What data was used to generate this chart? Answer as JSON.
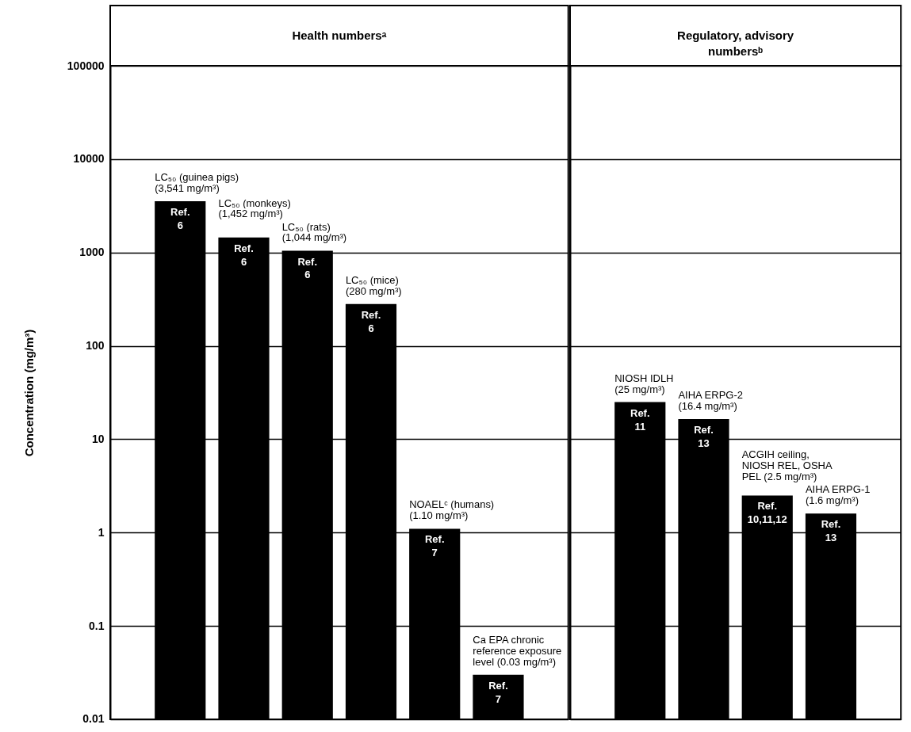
{
  "chart_data": [
    {
      "type": "bar",
      "title": "Health numbersᵃ",
      "ylabel": "Concentration (mg/m³)",
      "categories": [
        null,
        null,
        null,
        null,
        null,
        null
      ],
      "values": [
        3541,
        1452,
        1044,
        280,
        1.1,
        0.03
      ],
      "color": "#000000",
      "value_labels": [
        "LC₅₀ (guinea pigs) (3,541 mg/m³)",
        "LC₅₀ (monkeys) (1,452 mg/m³)",
        "LC₅₀ (rats) (1,044 mg/m³)",
        "LC₅₀ (mice) (280 mg/m³)",
        "NOAELᶜ (humans) (1.10 mg/m³)",
        "Ca EPA chronic reference exposure level (0.03 mg/m³)"
      ],
      "annotations": [
        {
          "text": "Ref. 6",
          "y": 3541
        },
        {
          "text": "Ref. 6",
          "y": 1452
        },
        {
          "text": "Ref. 6",
          "y": 1044
        },
        {
          "text": "Ref. 6",
          "y": 280
        },
        {
          "text": "Ref. 7",
          "y": 1.1
        },
        {
          "text": "Ref. 7",
          "y": 0.03
        }
      ],
      "ylim": [
        0.01,
        100000
      ],
      "yticks": [
        0.01,
        0.1,
        1,
        10,
        100,
        1000,
        10000,
        100000
      ],
      "log": true,
      "grid": "y",
      "tick_labels": "y"
    },
    {
      "type": "bar",
      "title": "Regulatory, advisory numbersᵇ",
      "categories": [
        null,
        null,
        null,
        null
      ],
      "values": [
        25,
        16.4,
        2.5,
        1.6
      ],
      "color": "#000000",
      "value_labels": [
        "NIOSH IDLH (25 mg/m³)",
        "AIHA ERPG-2 (16.4 mg/m³)",
        "ACGIH ceiling, NIOSH REL, OSHA PEL (2.5 mg/m³)",
        "AIHA ERPG-1 (1.6 mg/m³)"
      ],
      "annotations": [
        {
          "text": "Ref. 11",
          "y": 25
        },
        {
          "text": "Ref. 13",
          "y": 16.4
        },
        {
          "text": "Ref. 10,11,12",
          "y": 2.5
        },
        {
          "text": "Ref. 13",
          "y": 1.6
        }
      ],
      "ylim": [
        0.01,
        100000
      ],
      "yticks": [
        0.01,
        0.1,
        1,
        10,
        100,
        1000,
        10000,
        100000
      ],
      "log": true,
      "grid": "y",
      "tick_labels": false
    }
  ]
}
